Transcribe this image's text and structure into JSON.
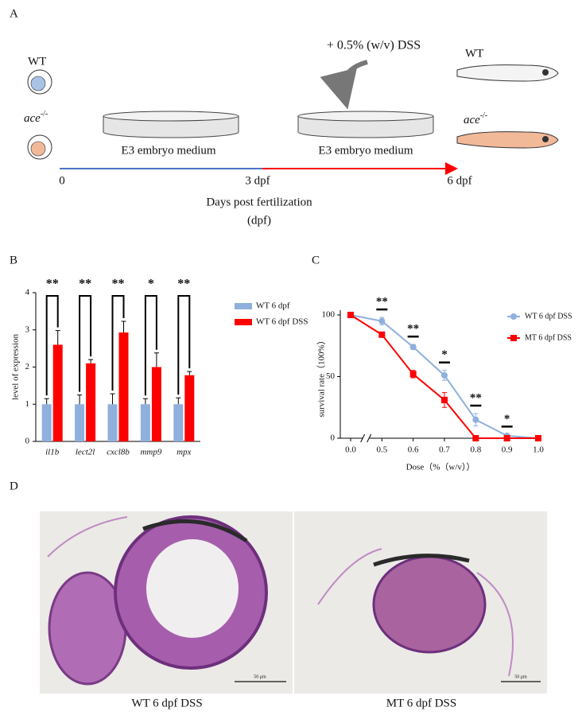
{
  "panels": {
    "a": "A",
    "b": "B",
    "c": "C",
    "d": "D"
  },
  "diagram": {
    "wt_label": "WT",
    "ace_label": "ace",
    "ace_sup": "-/-",
    "treatment": "+ 0.5% (w/v) DSS",
    "medium_1": "E3 embryo medium",
    "medium_2": "E3 embryo medium",
    "fish_wt_label": "WT",
    "fish_ace_label": "ace",
    "fish_ace_sup": "-/-",
    "timeline_start": "0",
    "timeline_mid": "3 dpf",
    "timeline_end": "6 dpf",
    "timeline_title": "Days post fertilization",
    "timeline_unit": "(dpf)"
  },
  "chart_data": [
    {
      "type": "bar",
      "categories": [
        "il1b",
        "lect2l",
        "cxcl8b",
        "mmp9",
        "mpx"
      ],
      "ylabel": "level of expression",
      "ylim": [
        0,
        4
      ],
      "yticks": [
        0,
        1,
        2,
        3,
        4
      ],
      "series": [
        {
          "name": "WT 6 dpf",
          "color": "#8fb0dc",
          "values": [
            1,
            1,
            1,
            1,
            1
          ],
          "errors": [
            0.15,
            0.25,
            0.28,
            0.15,
            0.17
          ]
        },
        {
          "name": "WT 6 dpf DSS",
          "color": "#ff0000",
          "values": [
            2.6,
            2.1,
            2.93,
            2.0,
            1.78
          ],
          "errors": [
            0.38,
            0.1,
            0.3,
            0.38,
            0.1
          ]
        }
      ],
      "significance": [
        "**",
        "**",
        "**",
        "*",
        "**"
      ],
      "legend": "upper right"
    },
    {
      "type": "line",
      "categories": [
        "0.0",
        "0.5",
        "0.6",
        "0.7",
        "0.8",
        "0.9",
        "1.0"
      ],
      "xlabel": "Dose（%（w/v））",
      "ylabel": "survival rate（100%）",
      "ylim": [
        0,
        100
      ],
      "yticks": [
        0,
        50,
        100
      ],
      "axis_break": true,
      "series": [
        {
          "name": "WT 6 dpf DSS",
          "color": "#8fb0dc",
          "marker": "circle",
          "values": [
            100,
            95,
            74,
            51,
            15,
            2,
            0
          ],
          "errors": [
            0,
            3,
            2,
            4,
            5,
            1,
            0
          ]
        },
        {
          "name": "MT 6 dpf DSS",
          "color": "#ff0000",
          "marker": "square",
          "values": [
            100,
            84,
            52,
            31,
            0,
            0,
            0
          ],
          "errors": [
            0,
            1,
            3,
            6,
            0,
            0,
            0
          ]
        }
      ],
      "significance": [
        null,
        "**",
        "**",
        "*",
        "**",
        "*",
        null
      ],
      "legend": "upper right"
    }
  ],
  "histology": {
    "left_caption": "WT 6 dpf DSS",
    "right_caption": "MT 6 dpf DSS",
    "left_scale": "50 μm",
    "right_scale": "50 μm"
  }
}
